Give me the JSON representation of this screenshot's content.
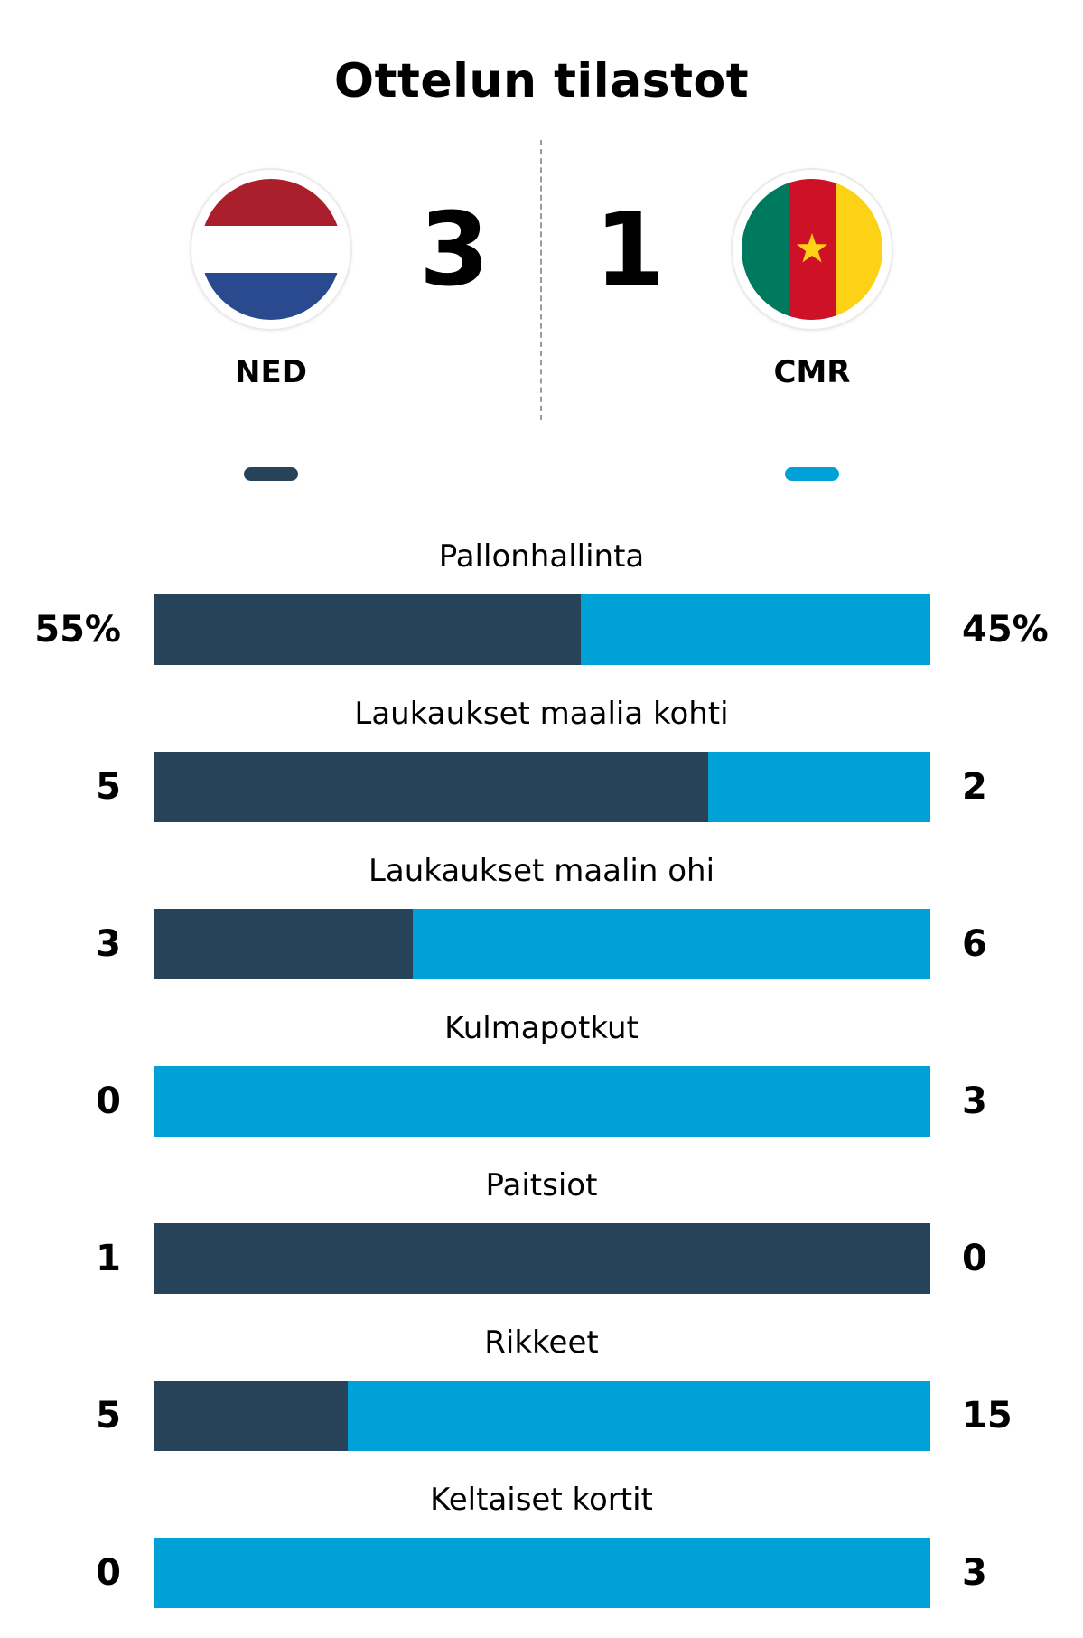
{
  "title": "Ottelun tilastot",
  "colors": {
    "home": "#27435a",
    "away": "#00a1d6"
  },
  "home": {
    "code": "NED",
    "score": "3",
    "flag_icon": "netherlands-flag-icon"
  },
  "away": {
    "code": "CMR",
    "score": "1",
    "flag_icon": "cameroon-flag-icon"
  },
  "stats": [
    {
      "label": "Pallonhallinta",
      "home": "55%",
      "away": "45%",
      "home_value": 55,
      "away_value": 45
    },
    {
      "label": "Laukaukset maalia kohti",
      "home": "5",
      "away": "2",
      "home_value": 5,
      "away_value": 2
    },
    {
      "label": "Laukaukset maalin ohi",
      "home": "3",
      "away": "6",
      "home_value": 3,
      "away_value": 6
    },
    {
      "label": "Kulmapotkut",
      "home": "0",
      "away": "3",
      "home_value": 0,
      "away_value": 3
    },
    {
      "label": "Paitsiot",
      "home": "1",
      "away": "0",
      "home_value": 1,
      "away_value": 0
    },
    {
      "label": "Rikkeet",
      "home": "5",
      "away": "15",
      "home_value": 5,
      "away_value": 15
    },
    {
      "label": "Keltaiset kortit",
      "home": "0",
      "away": "3",
      "home_value": 0,
      "away_value": 3
    }
  ]
}
